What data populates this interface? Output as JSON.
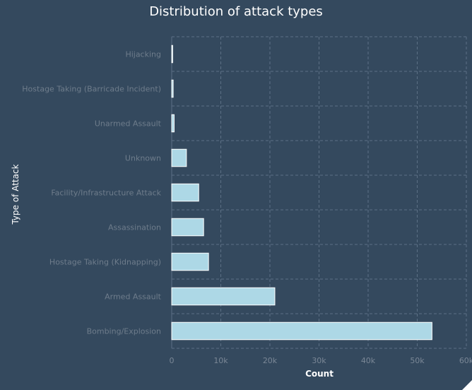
{
  "chart_data": {
    "type": "bar",
    "orientation": "horizontal",
    "title": "Distribution of attack types",
    "xlabel": "Count",
    "ylabel": "Type of Attack",
    "categories": [
      "Hijacking",
      "Hostage Taking (Barricade Incident)",
      "Unarmed Assault",
      "Unknown",
      "Facility/Infrastructure Attack",
      "Assassination",
      "Hostage Taking (Kidnapping)",
      "Armed Assault",
      "Bombing/Explosion"
    ],
    "values": [
      200,
      300,
      500,
      3000,
      5500,
      6500,
      7500,
      21000,
      53000
    ],
    "xlim": [
      0,
      60000
    ],
    "xticks": [
      0,
      10000,
      20000,
      30000,
      40000,
      50000,
      60000
    ],
    "xtick_labels": [
      "0",
      "10k",
      "20k",
      "30k",
      "40k",
      "50k",
      "60k"
    ],
    "grid": true,
    "colors": {
      "background": "#34495e",
      "bar_fill": "#add8e6",
      "bar_stroke": "#ffffff",
      "grid": "#5c7085"
    }
  }
}
